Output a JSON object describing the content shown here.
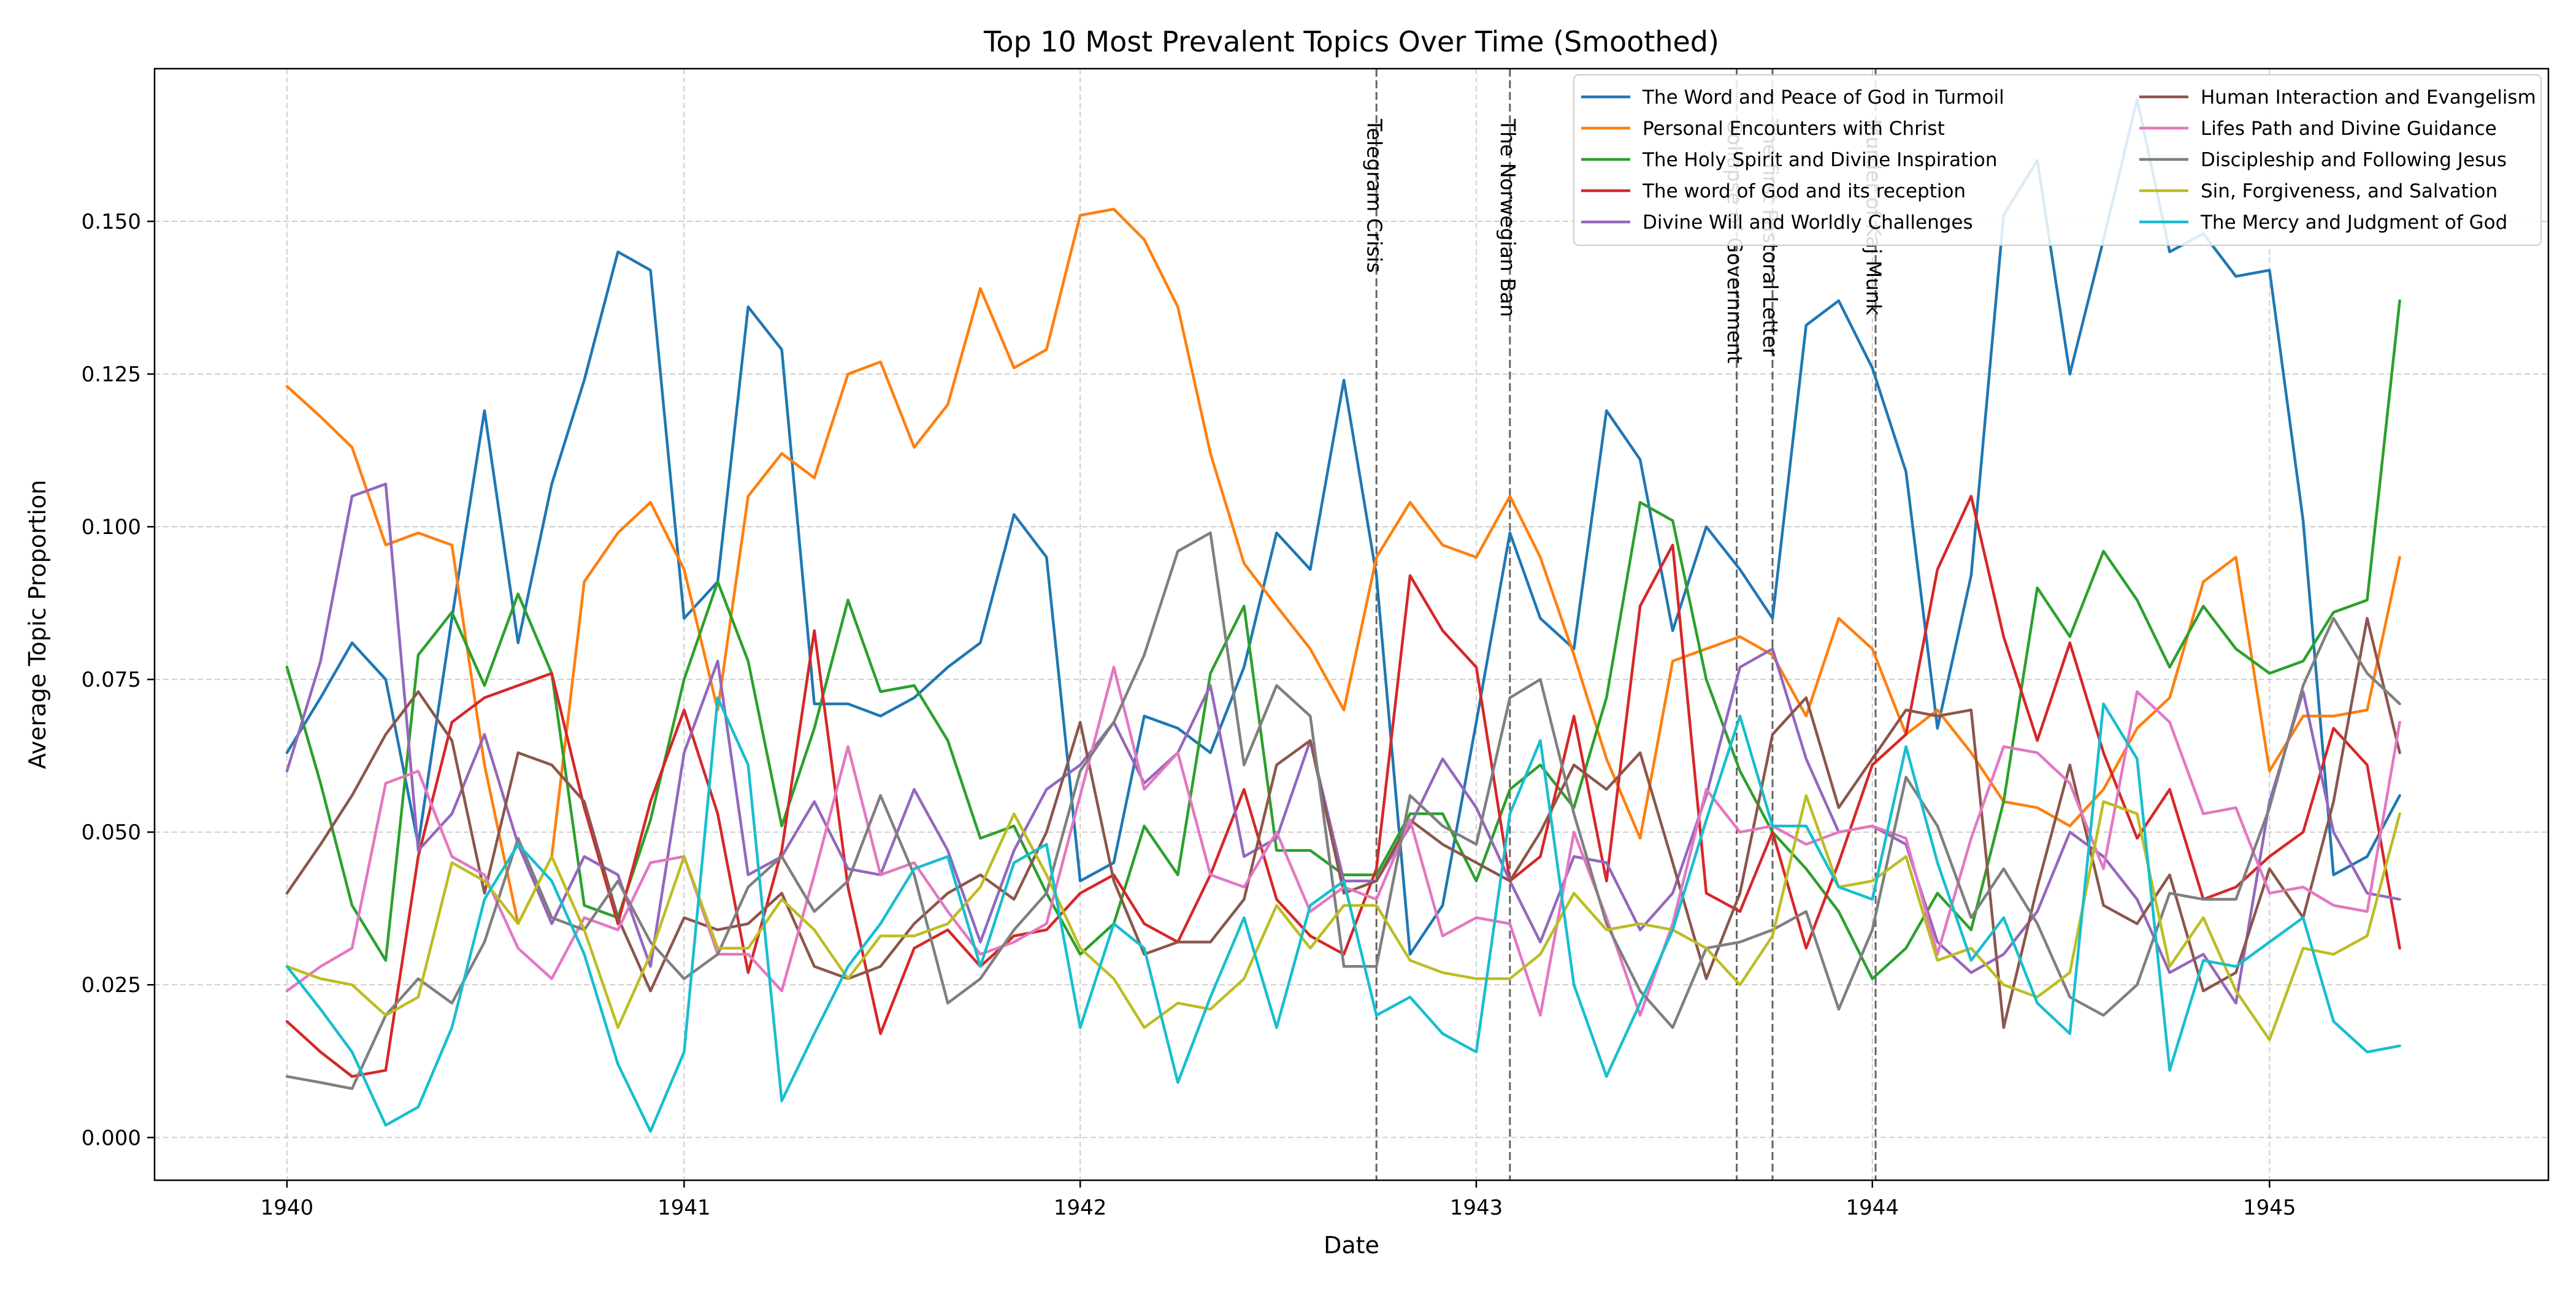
{
  "chart_data": {
    "type": "line",
    "title": "Top 10 Most Prevalent Topics Over Time (Smoothed)",
    "xlabel": "Date",
    "ylabel": "Average Topic Proportion",
    "xlim": [
      "1939-09-01",
      "1945-09-15"
    ],
    "ylim": [
      -0.007,
      0.175
    ],
    "x_ticks": [
      "1940",
      "1941",
      "1942",
      "1943",
      "1944",
      "1945"
    ],
    "y_ticks": [
      "0.000",
      "0.025",
      "0.050",
      "0.075",
      "0.100",
      "0.125",
      "0.150"
    ],
    "y_tick_values": [
      0,
      0.025,
      0.05,
      0.075,
      0.1,
      0.125,
      0.15
    ],
    "grid": true,
    "legend_position": "top-right",
    "x": [
      "1940-01",
      "1940-02",
      "1940-03",
      "1940-04",
      "1940-05",
      "1940-06",
      "1940-07",
      "1940-08",
      "1940-09",
      "1940-10",
      "1940-11",
      "1940-12",
      "1941-01",
      "1941-02",
      "1941-03",
      "1941-04",
      "1941-05",
      "1941-06",
      "1941-07",
      "1941-08",
      "1941-09",
      "1941-10",
      "1941-11",
      "1941-12",
      "1942-01",
      "1942-02",
      "1942-03",
      "1942-04",
      "1942-05",
      "1942-06",
      "1942-07",
      "1942-08",
      "1942-09",
      "1942-10",
      "1942-11",
      "1942-12",
      "1943-01",
      "1943-02",
      "1943-03",
      "1943-04",
      "1943-05",
      "1943-06",
      "1943-07",
      "1943-08",
      "1943-09",
      "1943-10",
      "1943-11",
      "1943-12",
      "1944-01",
      "1944-02",
      "1944-03",
      "1944-04",
      "1944-05",
      "1944-06",
      "1944-07",
      "1944-08",
      "1944-09",
      "1944-10",
      "1944-11",
      "1944-12",
      "1945-01",
      "1945-02",
      "1945-03",
      "1945-04",
      "1945-05"
    ],
    "events": [
      {
        "date": "1942-10-01",
        "label": "Telegram Crisis"
      },
      {
        "date": "1943-02-01",
        "label": "The Norwegian Ban"
      },
      {
        "date": "1943-08-29",
        "label": "Collapse of Government"
      },
      {
        "date": "1943-10-01",
        "label": "The first Pastoral Letter"
      },
      {
        "date": "1944-01-04",
        "label": "Murder of Kaj Munk"
      }
    ],
    "series": [
      {
        "name": "The Word and Peace of God in Turmoil",
        "color": "#1f77b4",
        "values": [
          0.063,
          0.072,
          0.081,
          0.075,
          0.048,
          0.085,
          0.119,
          0.081,
          0.107,
          0.124,
          0.145,
          0.142,
          0.085,
          0.091,
          0.136,
          0.129,
          0.071,
          0.071,
          0.069,
          0.072,
          0.077,
          0.081,
          0.102,
          0.095,
          0.042,
          0.045,
          0.069,
          0.067,
          0.063,
          0.077,
          0.099,
          0.093,
          0.124,
          0.092,
          0.03,
          0.038,
          0.068,
          0.099,
          0.085,
          0.08,
          0.119,
          0.111,
          0.083,
          0.1,
          0.093,
          0.085,
          0.133,
          0.137,
          0.126,
          0.109,
          0.067,
          0.092,
          0.151,
          0.16,
          0.125,
          0.147,
          0.17,
          0.145,
          0.148,
          0.141,
          0.142,
          0.101,
          0.043,
          0.046,
          0.056
        ]
      },
      {
        "name": "Personal Encounters with Christ",
        "color": "#ff7f0e",
        "values": [
          0.123,
          0.118,
          0.113,
          0.097,
          0.099,
          0.097,
          0.061,
          0.035,
          0.046,
          0.091,
          0.099,
          0.104,
          0.093,
          0.07,
          0.105,
          0.112,
          0.108,
          0.125,
          0.127,
          0.113,
          0.12,
          0.139,
          0.126,
          0.129,
          0.151,
          0.152,
          0.147,
          0.136,
          0.112,
          0.094,
          0.087,
          0.08,
          0.07,
          0.095,
          0.104,
          0.097,
          0.095,
          0.105,
          0.095,
          0.079,
          0.062,
          0.049,
          0.078,
          0.08,
          0.082,
          0.079,
          0.069,
          0.085,
          0.08,
          0.066,
          0.07,
          0.063,
          0.055,
          0.054,
          0.051,
          0.057,
          0.067,
          0.072,
          0.091,
          0.095,
          0.06,
          0.069,
          0.069,
          0.07,
          0.095
        ]
      },
      {
        "name": "The Holy Spirit and Divine Inspiration",
        "color": "#2ca02c",
        "values": [
          0.077,
          0.058,
          0.038,
          0.029,
          0.079,
          0.086,
          0.074,
          0.089,
          0.076,
          0.038,
          0.036,
          0.052,
          0.075,
          0.091,
          0.078,
          0.051,
          0.067,
          0.088,
          0.073,
          0.074,
          0.065,
          0.049,
          0.051,
          0.04,
          0.03,
          0.035,
          0.051,
          0.043,
          0.076,
          0.087,
          0.047,
          0.047,
          0.043,
          0.043,
          0.053,
          0.053,
          0.042,
          0.057,
          0.061,
          0.054,
          0.072,
          0.104,
          0.101,
          0.075,
          0.06,
          0.05,
          0.044,
          0.037,
          0.026,
          0.031,
          0.04,
          0.034,
          0.055,
          0.09,
          0.082,
          0.096,
          0.088,
          0.077,
          0.087,
          0.08,
          0.076,
          0.078,
          0.086,
          0.088,
          0.137
        ]
      },
      {
        "name": "The word of God and its reception",
        "color": "#d62728",
        "values": [
          0.019,
          0.014,
          0.01,
          0.011,
          0.046,
          0.068,
          0.072,
          0.074,
          0.076,
          0.054,
          0.035,
          0.055,
          0.07,
          0.053,
          0.027,
          0.047,
          0.083,
          0.041,
          0.017,
          0.031,
          0.034,
          0.028,
          0.033,
          0.034,
          0.04,
          0.043,
          0.035,
          0.032,
          0.043,
          0.057,
          0.039,
          0.033,
          0.03,
          0.044,
          0.092,
          0.083,
          0.077,
          0.042,
          0.046,
          0.069,
          0.042,
          0.087,
          0.097,
          0.04,
          0.037,
          0.05,
          0.031,
          0.045,
          0.061,
          0.066,
          0.093,
          0.105,
          0.082,
          0.065,
          0.081,
          0.063,
          0.049,
          0.057,
          0.039,
          0.041,
          0.046,
          0.05,
          0.067,
          0.061,
          0.031
        ]
      },
      {
        "name": "Divine Will and Worldly Challenges",
        "color": "#9467bd",
        "values": [
          0.06,
          0.078,
          0.105,
          0.107,
          0.047,
          0.053,
          0.066,
          0.048,
          0.035,
          0.046,
          0.043,
          0.028,
          0.063,
          0.078,
          0.043,
          0.046,
          0.055,
          0.044,
          0.043,
          0.057,
          0.047,
          0.032,
          0.047,
          0.057,
          0.061,
          0.068,
          0.058,
          0.063,
          0.074,
          0.046,
          0.049,
          0.065,
          0.042,
          0.042,
          0.051,
          0.062,
          0.054,
          0.042,
          0.032,
          0.046,
          0.045,
          0.034,
          0.04,
          0.056,
          0.077,
          0.08,
          0.062,
          0.05,
          0.051,
          0.048,
          0.032,
          0.027,
          0.03,
          0.037,
          0.05,
          0.046,
          0.039,
          0.027,
          0.03,
          0.022,
          0.055,
          0.073,
          0.05,
          0.04,
          0.039
        ]
      },
      {
        "name": "Human Interaction and  Evangelism",
        "color": "#8c564b",
        "values": [
          0.04,
          0.048,
          0.056,
          0.066,
          0.073,
          0.065,
          0.04,
          0.063,
          0.061,
          0.055,
          0.036,
          0.024,
          0.036,
          0.034,
          0.035,
          0.04,
          0.028,
          0.026,
          0.028,
          0.035,
          0.04,
          0.043,
          0.039,
          0.05,
          0.068,
          0.042,
          0.03,
          0.032,
          0.032,
          0.039,
          0.061,
          0.065,
          0.04,
          0.042,
          0.052,
          0.048,
          0.045,
          0.042,
          0.05,
          0.061,
          0.057,
          0.063,
          0.045,
          0.026,
          0.04,
          0.066,
          0.072,
          0.054,
          0.062,
          0.07,
          0.069,
          0.07,
          0.018,
          0.041,
          0.061,
          0.038,
          0.035,
          0.043,
          0.024,
          0.027,
          0.044,
          0.036,
          0.055,
          0.085,
          0.063
        ]
      },
      {
        "name": "Life\u0019s Path and Divine Guidance",
        "color": "#e377c2",
        "values": [
          0.024,
          0.028,
          0.031,
          0.058,
          0.06,
          0.046,
          0.043,
          0.031,
          0.026,
          0.036,
          0.034,
          0.045,
          0.046,
          0.03,
          0.03,
          0.024,
          0.043,
          0.064,
          0.043,
          0.045,
          0.037,
          0.03,
          0.032,
          0.035,
          0.056,
          0.077,
          0.057,
          0.063,
          0.043,
          0.041,
          0.05,
          0.037,
          0.041,
          0.039,
          0.052,
          0.033,
          0.036,
          0.035,
          0.02,
          0.05,
          0.036,
          0.02,
          0.035,
          0.057,
          0.05,
          0.051,
          0.048,
          0.05,
          0.051,
          0.049,
          0.03,
          0.049,
          0.064,
          0.063,
          0.058,
          0.044,
          0.073,
          0.068,
          0.053,
          0.054,
          0.04,
          0.041,
          0.038,
          0.037,
          0.068
        ]
      },
      {
        "name": "Discipleship and Following Jesus",
        "color": "#7f7f7f",
        "values": [
          0.01,
          0.009,
          0.008,
          0.02,
          0.026,
          0.022,
          0.032,
          0.049,
          0.036,
          0.034,
          0.042,
          0.032,
          0.026,
          0.03,
          0.041,
          0.046,
          0.037,
          0.042,
          0.056,
          0.043,
          0.022,
          0.026,
          0.034,
          0.04,
          0.06,
          0.068,
          0.079,
          0.096,
          0.099,
          0.061,
          0.074,
          0.069,
          0.028,
          0.028,
          0.056,
          0.051,
          0.048,
          0.072,
          0.075,
          0.053,
          0.035,
          0.024,
          0.018,
          0.031,
          0.032,
          0.034,
          0.037,
          0.021,
          0.034,
          0.059,
          0.051,
          0.036,
          0.044,
          0.035,
          0.023,
          0.02,
          0.025,
          0.04,
          0.039,
          0.039,
          0.054,
          0.074,
          0.085,
          0.076,
          0.071
        ]
      },
      {
        "name": "Sin, Forgiveness, and Salvation",
        "color": "#bcbd22",
        "values": [
          0.028,
          0.026,
          0.025,
          0.02,
          0.023,
          0.045,
          0.042,
          0.035,
          0.046,
          0.034,
          0.018,
          0.03,
          0.046,
          0.031,
          0.031,
          0.039,
          0.034,
          0.026,
          0.033,
          0.033,
          0.035,
          0.041,
          0.053,
          0.043,
          0.031,
          0.026,
          0.018,
          0.022,
          0.021,
          0.026,
          0.038,
          0.031,
          0.038,
          0.038,
          0.029,
          0.027,
          0.026,
          0.026,
          0.03,
          0.04,
          0.034,
          0.035,
          0.034,
          0.031,
          0.025,
          0.033,
          0.056,
          0.041,
          0.042,
          0.046,
          0.029,
          0.031,
          0.025,
          0.023,
          0.027,
          0.055,
          0.053,
          0.028,
          0.036,
          0.024,
          0.016,
          0.031,
          0.03,
          0.033,
          0.053
        ]
      },
      {
        "name": "The Mercy and Judgment of God",
        "color": "#17becf",
        "values": [
          0.028,
          0.021,
          0.014,
          0.002,
          0.005,
          0.018,
          0.039,
          0.048,
          0.042,
          0.03,
          0.012,
          0.001,
          0.014,
          0.072,
          0.061,
          0.006,
          0.017,
          0.028,
          0.035,
          0.044,
          0.046,
          0.028,
          0.045,
          0.048,
          0.018,
          0.035,
          0.031,
          0.009,
          0.023,
          0.036,
          0.018,
          0.038,
          0.042,
          0.02,
          0.023,
          0.017,
          0.014,
          0.053,
          0.065,
          0.025,
          0.01,
          0.022,
          0.034,
          0.052,
          0.069,
          0.051,
          0.051,
          0.041,
          0.039,
          0.064,
          0.045,
          0.029,
          0.036,
          0.022,
          0.017,
          0.071,
          0.062,
          0.011,
          0.029,
          0.028,
          0.032,
          0.036,
          0.019,
          0.014,
          0.015
        ]
      }
    ]
  }
}
